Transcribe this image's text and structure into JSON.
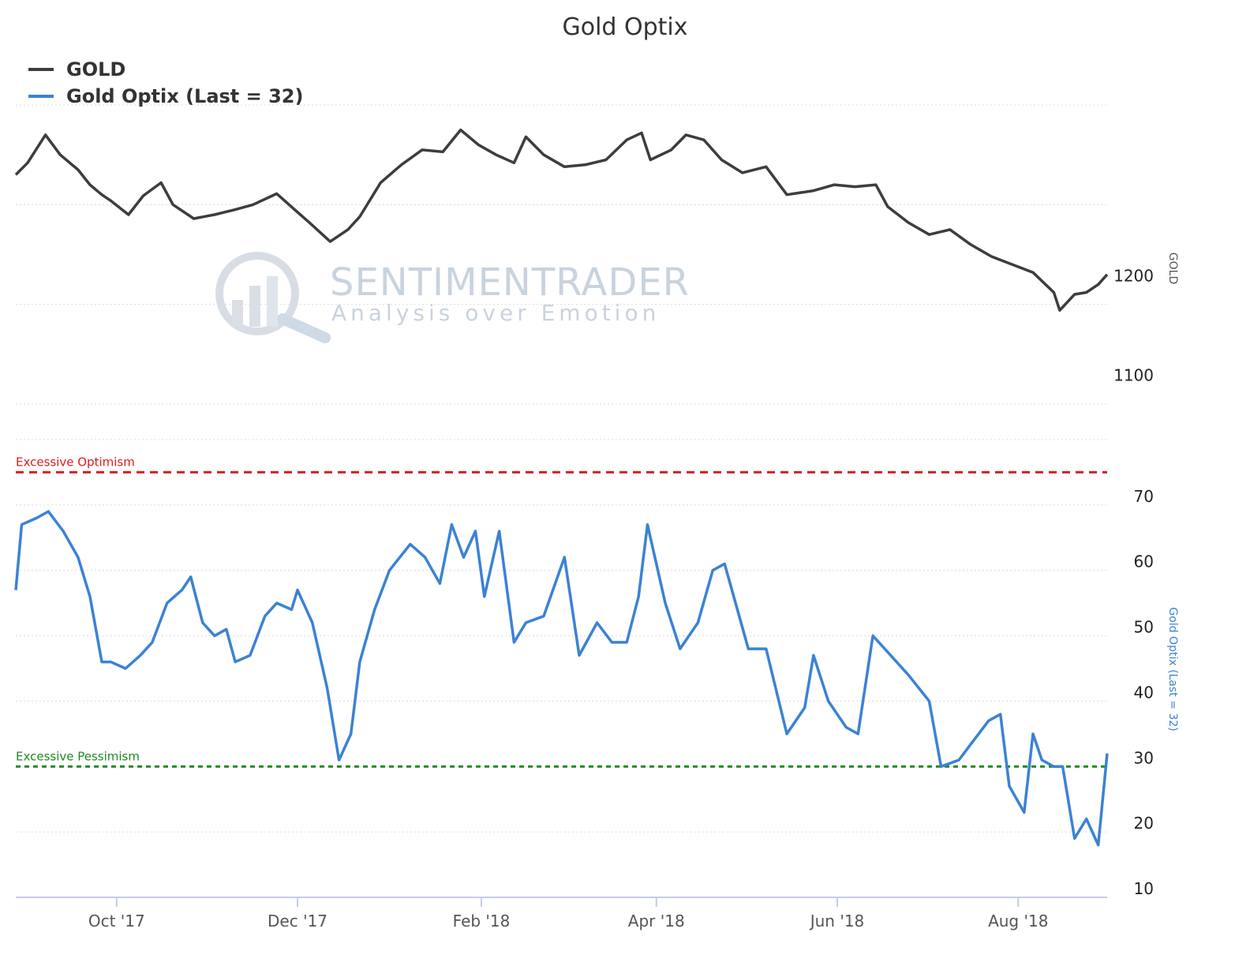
{
  "chart_data": {
    "type": "line",
    "title": "Gold Optix",
    "legend": {
      "placement": "top-left",
      "entries": [
        {
          "label": "GOLD",
          "color": "#3d3d3f"
        },
        {
          "label": "Gold Optix (Last = 32)",
          "color": "#3b82d4"
        }
      ]
    },
    "x_axis": {
      "tick_labels": [
        "Oct '17",
        "Dec '17",
        "Feb '18",
        "Apr '18",
        "Jun '18",
        "Aug '18"
      ],
      "tick_dates": [
        "2017-10-01",
        "2017-12-01",
        "2018-02-01",
        "2018-04-01",
        "2018-06-01",
        "2018-08-01"
      ],
      "range": [
        "2017-08-28",
        "2018-08-31"
      ]
    },
    "panels": [
      {
        "series_name": "GOLD",
        "axis_title": "GOLD",
        "y_ticks": [
          1100,
          1200
        ],
        "ylim": [
          1080,
          1380
        ],
        "color": "#3d3d3f",
        "points": [
          [
            "2017-08-28",
            1310
          ],
          [
            "2017-09-01",
            1322
          ],
          [
            "2017-09-07",
            1350
          ],
          [
            "2017-09-12",
            1330
          ],
          [
            "2017-09-18",
            1315
          ],
          [
            "2017-09-22",
            1300
          ],
          [
            "2017-09-26",
            1290
          ],
          [
            "2017-09-29",
            1284
          ],
          [
            "2017-10-05",
            1270
          ],
          [
            "2017-10-10",
            1289
          ],
          [
            "2017-10-16",
            1302
          ],
          [
            "2017-10-20",
            1280
          ],
          [
            "2017-10-27",
            1266
          ],
          [
            "2017-11-03",
            1270
          ],
          [
            "2017-11-10",
            1275
          ],
          [
            "2017-11-16",
            1280
          ],
          [
            "2017-11-24",
            1291
          ],
          [
            "2017-11-30",
            1275
          ],
          [
            "2017-12-05",
            1262
          ],
          [
            "2017-12-12",
            1243
          ],
          [
            "2017-12-18",
            1255
          ],
          [
            "2017-12-22",
            1268
          ],
          [
            "2017-12-29",
            1302
          ],
          [
            "2018-01-05",
            1320
          ],
          [
            "2018-01-12",
            1335
          ],
          [
            "2018-01-19",
            1333
          ],
          [
            "2018-01-25",
            1355
          ],
          [
            "2018-01-31",
            1340
          ],
          [
            "2018-02-06",
            1330
          ],
          [
            "2018-02-12",
            1322
          ],
          [
            "2018-02-16",
            1348
          ],
          [
            "2018-02-22",
            1330
          ],
          [
            "2018-03-01",
            1318
          ],
          [
            "2018-03-08",
            1320
          ],
          [
            "2018-03-15",
            1325
          ],
          [
            "2018-03-22",
            1345
          ],
          [
            "2018-03-27",
            1352
          ],
          [
            "2018-03-30",
            1325
          ],
          [
            "2018-04-06",
            1335
          ],
          [
            "2018-04-11",
            1350
          ],
          [
            "2018-04-17",
            1345
          ],
          [
            "2018-04-23",
            1325
          ],
          [
            "2018-04-30",
            1312
          ],
          [
            "2018-05-08",
            1318
          ],
          [
            "2018-05-15",
            1290
          ],
          [
            "2018-05-24",
            1294
          ],
          [
            "2018-05-31",
            1300
          ],
          [
            "2018-06-07",
            1298
          ],
          [
            "2018-06-14",
            1300
          ],
          [
            "2018-06-18",
            1278
          ],
          [
            "2018-06-25",
            1262
          ],
          [
            "2018-07-02",
            1250
          ],
          [
            "2018-07-09",
            1255
          ],
          [
            "2018-07-16",
            1240
          ],
          [
            "2018-07-23",
            1228
          ],
          [
            "2018-07-30",
            1220
          ],
          [
            "2018-08-06",
            1212
          ],
          [
            "2018-08-13",
            1192
          ],
          [
            "2018-08-15",
            1174
          ],
          [
            "2018-08-20",
            1190
          ],
          [
            "2018-08-24",
            1192
          ],
          [
            "2018-08-28",
            1200
          ],
          [
            "2018-08-31",
            1210
          ]
        ]
      },
      {
        "series_name": "Gold Optix (Last = 32)",
        "axis_title": "Gold Optix (Last = 32)",
        "y_ticks": [
          10,
          20,
          30,
          40,
          50,
          60,
          70
        ],
        "ylim": [
          10,
          80
        ],
        "color": "#3b82d4",
        "points": [
          [
            "2017-08-28",
            57
          ],
          [
            "2017-08-30",
            67
          ],
          [
            "2017-09-04",
            68
          ],
          [
            "2017-09-08",
            69
          ],
          [
            "2017-09-13",
            66
          ],
          [
            "2017-09-18",
            62
          ],
          [
            "2017-09-22",
            56
          ],
          [
            "2017-09-26",
            46
          ],
          [
            "2017-09-29",
            46
          ],
          [
            "2017-10-04",
            45
          ],
          [
            "2017-10-09",
            47
          ],
          [
            "2017-10-13",
            49
          ],
          [
            "2017-10-18",
            55
          ],
          [
            "2017-10-23",
            57
          ],
          [
            "2017-10-26",
            59
          ],
          [
            "2017-10-30",
            52
          ],
          [
            "2017-11-03",
            50
          ],
          [
            "2017-11-07",
            51
          ],
          [
            "2017-11-10",
            46
          ],
          [
            "2017-11-15",
            47
          ],
          [
            "2017-11-20",
            53
          ],
          [
            "2017-11-24",
            55
          ],
          [
            "2017-11-29",
            54
          ],
          [
            "2017-12-01",
            57
          ],
          [
            "2017-12-06",
            52
          ],
          [
            "2017-12-11",
            42
          ],
          [
            "2017-12-15",
            31
          ],
          [
            "2017-12-19",
            35
          ],
          [
            "2017-12-22",
            46
          ],
          [
            "2017-12-27",
            54
          ],
          [
            "2018-01-01",
            60
          ],
          [
            "2018-01-08",
            64
          ],
          [
            "2018-01-13",
            62
          ],
          [
            "2018-01-18",
            58
          ],
          [
            "2018-01-22",
            67
          ],
          [
            "2018-01-26",
            62
          ],
          [
            "2018-01-30",
            66
          ],
          [
            "2018-02-02",
            56
          ],
          [
            "2018-02-07",
            66
          ],
          [
            "2018-02-12",
            49
          ],
          [
            "2018-02-16",
            52
          ],
          [
            "2018-02-22",
            53
          ],
          [
            "2018-03-01",
            62
          ],
          [
            "2018-03-06",
            47
          ],
          [
            "2018-03-12",
            52
          ],
          [
            "2018-03-17",
            49
          ],
          [
            "2018-03-22",
            49
          ],
          [
            "2018-03-26",
            56
          ],
          [
            "2018-03-29",
            67
          ],
          [
            "2018-04-04",
            55
          ],
          [
            "2018-04-09",
            48
          ],
          [
            "2018-04-15",
            52
          ],
          [
            "2018-04-20",
            60
          ],
          [
            "2018-04-24",
            61
          ],
          [
            "2018-05-02",
            48
          ],
          [
            "2018-05-08",
            48
          ],
          [
            "2018-05-15",
            35
          ],
          [
            "2018-05-21",
            39
          ],
          [
            "2018-05-24",
            47
          ],
          [
            "2018-05-29",
            40
          ],
          [
            "2018-06-04",
            36
          ],
          [
            "2018-06-08",
            35
          ],
          [
            "2018-06-13",
            50
          ],
          [
            "2018-06-19",
            47
          ],
          [
            "2018-06-25",
            44
          ],
          [
            "2018-07-02",
            40
          ],
          [
            "2018-07-06",
            30
          ],
          [
            "2018-07-12",
            31
          ],
          [
            "2018-07-17",
            34
          ],
          [
            "2018-07-22",
            37
          ],
          [
            "2018-07-26",
            38
          ],
          [
            "2018-07-29",
            27
          ],
          [
            "2018-08-03",
            23
          ],
          [
            "2018-08-06",
            35
          ],
          [
            "2018-08-09",
            31
          ],
          [
            "2018-08-13",
            30
          ],
          [
            "2018-08-16",
            30
          ],
          [
            "2018-08-20",
            19
          ],
          [
            "2018-08-24",
            22
          ],
          [
            "2018-08-28",
            18
          ],
          [
            "2018-08-31",
            32
          ]
        ],
        "bands": [
          {
            "label": "Excessive Optimism",
            "value": 75,
            "color": "#e01b1b"
          },
          {
            "label": "Excessive Pessimism",
            "value": 30,
            "color": "#1f8a1f"
          }
        ]
      }
    ],
    "grid": true
  },
  "watermark": {
    "line1": "SENTIMENTRADER",
    "line2": "Analysis over Emotion"
  }
}
